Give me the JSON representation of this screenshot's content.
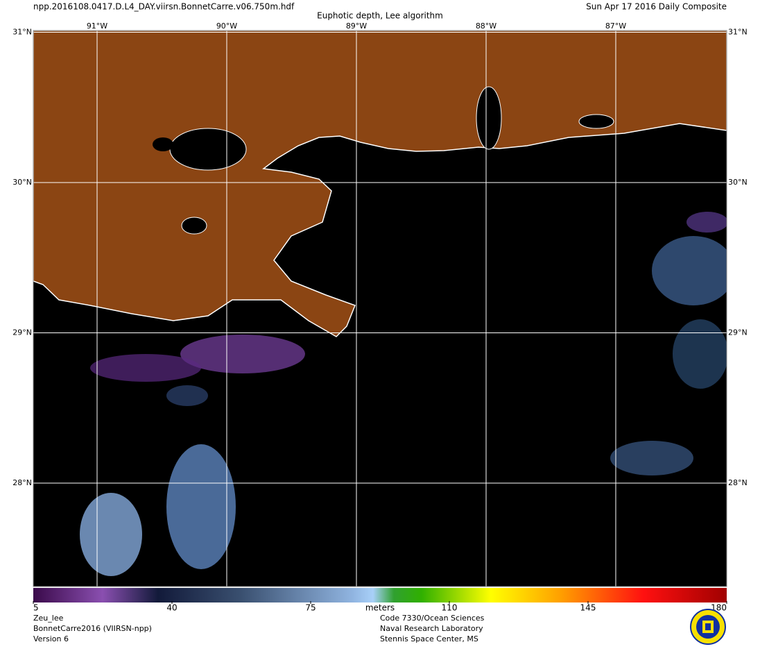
{
  "header": {
    "filename": "npp.2016108.0417.D.L4_DAY.viirsn.BonnetCarre.v06.750m.hdf",
    "date": "Sun Apr 17 2016 Daily Composite",
    "title": "Euphotic depth, Lee algorithm"
  },
  "map": {
    "lon_ticks": [
      {
        "value": -91,
        "label": "91°W"
      },
      {
        "value": -90,
        "label": "90°W"
      },
      {
        "value": -89,
        "label": "89°W"
      },
      {
        "value": -88,
        "label": "88°W"
      },
      {
        "value": -87,
        "label": "87°W"
      }
    ],
    "lat_ticks": [
      {
        "value": 31,
        "label": "31°N"
      },
      {
        "value": 30,
        "label": "30°N"
      },
      {
        "value": 29,
        "label": "29°N"
      },
      {
        "value": 28,
        "label": "28°N"
      }
    ]
  },
  "colorbar": {
    "range": [
      5,
      180
    ],
    "ticks": [
      5,
      40,
      75,
      110,
      145,
      180
    ],
    "unit": "meters"
  },
  "footer": {
    "left": [
      "Zeu_lee",
      "BonnetCarre2016 (VIIRSN-npp)",
      "Version 6"
    ],
    "center": [
      "Code 7330/Ocean Sciences",
      "Naval Research Laboratory",
      "Stennis Space Center, MS"
    ]
  }
}
